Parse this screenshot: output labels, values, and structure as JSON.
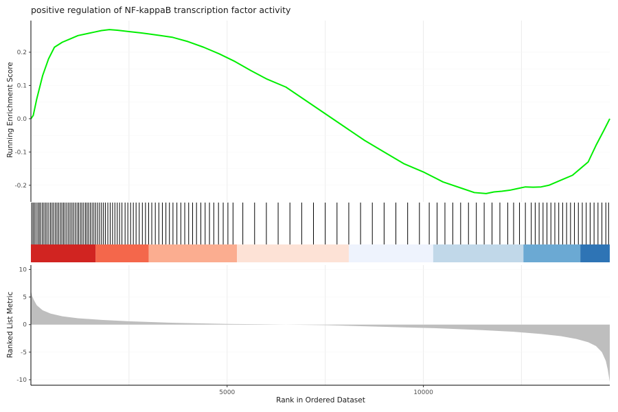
{
  "chart_data": {
    "type": "line",
    "title": "positive regulation of NF-kappaB transcription factor activity",
    "xlabel": "Rank in Ordered Dataset",
    "x_ticks": [
      5000,
      10000
    ],
    "xlim": [
      0,
      14750
    ],
    "grid": true,
    "legend": "none",
    "panels": [
      {
        "name": "enrichment",
        "type": "line",
        "ylabel": "Running Enrichment Score",
        "ylim": [
          -0.25,
          0.295
        ],
        "y_ticks": [
          0.2,
          0.1,
          0.0,
          -0.1,
          -0.2
        ],
        "y_tick_labels": [
          "0.2",
          "0.1",
          "0.0",
          "-0.1",
          "-0.2"
        ],
        "line_color": "#00ee00",
        "x": [
          0,
          60,
          150,
          300,
          450,
          600,
          800,
          1000,
          1200,
          1400,
          1600,
          1800,
          2000,
          2200,
          2500,
          2800,
          3000,
          3300,
          3600,
          4000,
          4400,
          4800,
          5200,
          5600,
          6000,
          6500,
          7000,
          7500,
          8000,
          8500,
          9000,
          9500,
          10000,
          10500,
          11000,
          11300,
          11600,
          11800,
          12000,
          12200,
          12400,
          12600,
          12800,
          13000,
          13200,
          13400,
          13600,
          13800,
          14000,
          14200,
          14400,
          14600,
          14750
        ],
        "y": [
          0.0,
          0.01,
          0.06,
          0.13,
          0.18,
          0.215,
          0.23,
          0.24,
          0.25,
          0.255,
          0.26,
          0.265,
          0.268,
          0.266,
          0.262,
          0.258,
          0.255,
          0.25,
          0.245,
          0.232,
          0.215,
          0.195,
          0.172,
          0.145,
          0.12,
          0.095,
          0.055,
          0.015,
          -0.025,
          -0.065,
          -0.1,
          -0.135,
          -0.16,
          -0.19,
          -0.21,
          -0.222,
          -0.225,
          -0.22,
          -0.218,
          -0.215,
          -0.21,
          -0.205,
          -0.206,
          -0.205,
          -0.2,
          -0.19,
          -0.18,
          -0.17,
          -0.15,
          -0.13,
          -0.08,
          -0.035,
          0.0
        ]
      },
      {
        "name": "hits",
        "type": "rug",
        "positions": [
          20,
          55,
          90,
          130,
          175,
          210,
          245,
          290,
          330,
          370,
          410,
          455,
          500,
          540,
          580,
          625,
          665,
          705,
          750,
          790,
          830,
          870,
          915,
          960,
          1000,
          1045,
          1085,
          1130,
          1175,
          1215,
          1260,
          1300,
          1345,
          1390,
          1430,
          1470,
          1515,
          1560,
          1605,
          1650,
          1700,
          1750,
          1800,
          1850,
          1900,
          1960,
          2020,
          2080,
          2140,
          2200,
          2260,
          2320,
          2400,
          2470,
          2540,
          2610,
          2680,
          2760,
          2840,
          2920,
          3000,
          3080,
          3170,
          3260,
          3350,
          3440,
          3530,
          3620,
          3720,
          3820,
          3920,
          4020,
          4120,
          4220,
          4330,
          4440,
          4550,
          4660,
          4780,
          4900,
          5020,
          5150,
          5400,
          5700,
          6000,
          6300,
          6600,
          6900,
          7200,
          7500,
          7800,
          8100,
          8400,
          8700,
          9000,
          9300,
          9600,
          9900,
          10150,
          10350,
          10550,
          10750,
          10950,
          11150,
          11350,
          11550,
          11750,
          11950,
          12150,
          12300,
          12450,
          12600,
          12750,
          12850,
          12950,
          13050,
          13150,
          13250,
          13350,
          13450,
          13550,
          13650,
          13750,
          13850,
          13950,
          14050,
          14150,
          14250,
          14350,
          14450,
          14550,
          14650,
          14720
        ]
      },
      {
        "name": "ranked-metric",
        "type": "area",
        "ylabel": "Ranked List Metric",
        "ylim": [
          -11,
          10.8
        ],
        "y_ticks": [
          10,
          5,
          0,
          -5,
          -10
        ],
        "y_tick_labels": [
          "10",
          "5",
          "0",
          "-5",
          "-10"
        ],
        "fill_color": "#bebebe",
        "x": [
          0,
          30,
          80,
          150,
          300,
          500,
          800,
          1200,
          1800,
          2500,
          3500,
          5000,
          6500,
          7500,
          8500,
          9500,
          10500,
          11500,
          12300,
          13000,
          13500,
          13900,
          14200,
          14400,
          14550,
          14650,
          14700,
          14750
        ],
        "y": [
          6.2,
          5.2,
          4.4,
          3.5,
          2.6,
          2.0,
          1.5,
          1.15,
          0.85,
          0.6,
          0.35,
          0.12,
          0.0,
          -0.1,
          -0.3,
          -0.5,
          -0.7,
          -1.0,
          -1.3,
          -1.7,
          -2.1,
          -2.6,
          -3.2,
          -3.9,
          -5.0,
          -6.6,
          -8.2,
          -10.4
        ]
      }
    ],
    "heat_band": {
      "boundaries": [
        0,
        1650,
        3000,
        5250,
        8100,
        10250,
        12550,
        14000,
        14750
      ],
      "colors": [
        "#d12421",
        "#f4674b",
        "#fbad90",
        "#fde2d6",
        "#eef3fd",
        "#c1d8e9",
        "#6ba9d3",
        "#2e74b5"
      ]
    }
  }
}
